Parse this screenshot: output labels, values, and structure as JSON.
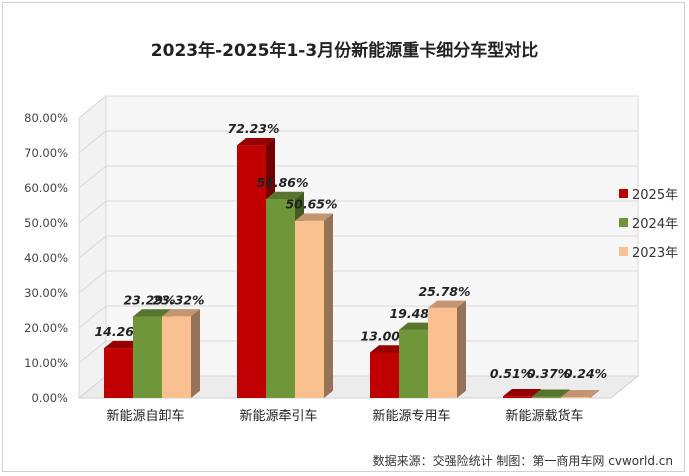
{
  "title": "2023年-2025年1-3月份新能源重卡细分车型对比",
  "source": "数据来源：交强险统计  制图：第一商用车网 cvworld.cn",
  "chart_data": {
    "type": "bar",
    "title": "2023年-2025年1-3月份新能源重卡细分车型对比",
    "categories": [
      "新能源自卸车",
      "新能源牵引车",
      "新能源专用车",
      "新能源载货车"
    ],
    "series": [
      {
        "name": "2025年",
        "color": "#c00000",
        "values": [
          14.26,
          72.23,
          13.0,
          0.51
        ],
        "labels": [
          "14.26%",
          "72.23%",
          "13.00%",
          "0.51%"
        ]
      },
      {
        "name": "2024年",
        "color": "#70963a",
        "values": [
          23.29,
          56.86,
          19.48,
          0.37
        ],
        "labels": [
          "23.29%",
          "56.86%",
          "19.48%",
          "0.37%"
        ]
      },
      {
        "name": "2023年",
        "color": "#fac090",
        "values": [
          23.32,
          50.65,
          25.78,
          0.24
        ],
        "labels": [
          "23.32%",
          "50.65%",
          "25.78%",
          "0.24%"
        ]
      }
    ],
    "yticks": [
      "0.00%",
      "10.00%",
      "20.00%",
      "30.00%",
      "40.00%",
      "50.00%",
      "60.00%",
      "70.00%",
      "80.00%"
    ],
    "ylim": [
      0,
      80
    ],
    "legend": "right",
    "grid": true
  }
}
